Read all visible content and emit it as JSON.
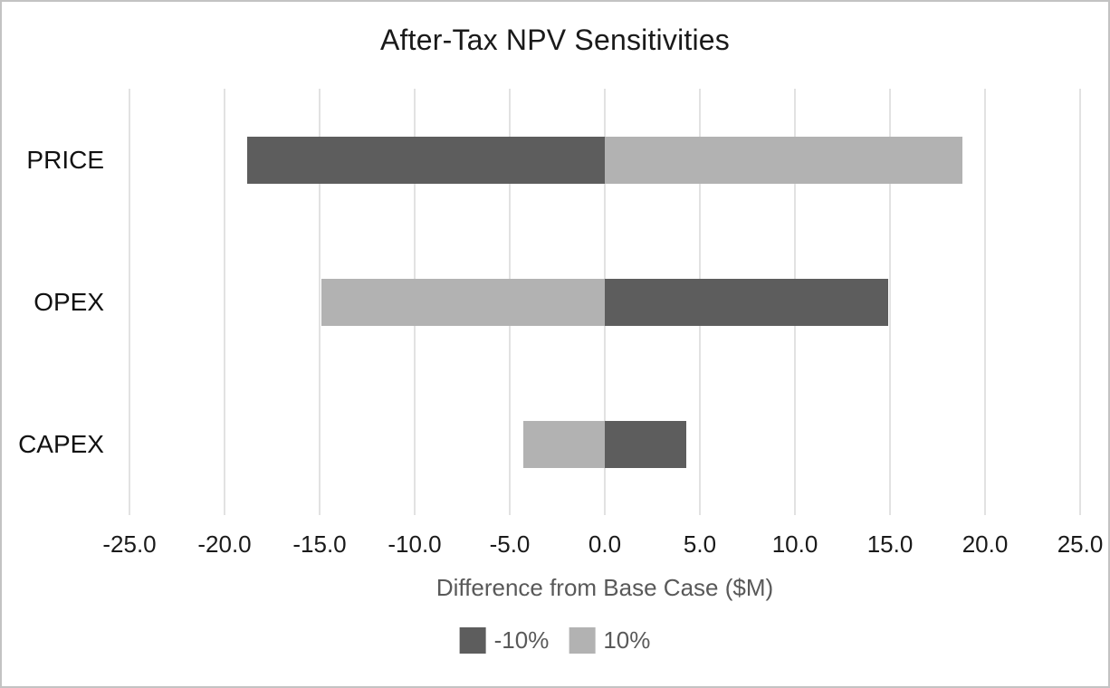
{
  "chart_title": "After-Tax NPV Sensitivities",
  "x_axis_title": "Difference from Base Case ($M)",
  "colors": {
    "series_dark": "#5d5d5d",
    "series_light": "#b2b2b2",
    "gridline": "#e2e2e2",
    "frame_border": "#c3c3c3",
    "axis_text": "#595959",
    "label_text": "#1a1a1a"
  },
  "chart_data": {
    "type": "bar",
    "orientation": "horizontal",
    "stacked": true,
    "title": "After-Tax NPV Sensitivities",
    "xlabel": "Difference from Base Case ($M)",
    "categories": [
      "PRICE",
      "OPEX",
      "CAPEX"
    ],
    "series": [
      {
        "name": "-10%",
        "color": "#5d5d5d",
        "values": [
          -18.8,
          14.9,
          4.3
        ]
      },
      {
        "name": "10%",
        "color": "#b2b2b2",
        "values": [
          18.8,
          -14.9,
          -4.3
        ]
      }
    ],
    "xlim": [
      -25.0,
      25.0
    ],
    "xticks": [
      "-25.0",
      "-20.0",
      "-15.0",
      "-10.0",
      "-5.0",
      "0.0",
      "5.0",
      "10.0",
      "15.0",
      "20.0",
      "25.0"
    ],
    "grid": true,
    "legend_position": "bottom",
    "legend_entries": [
      "-10%",
      "10%"
    ]
  }
}
